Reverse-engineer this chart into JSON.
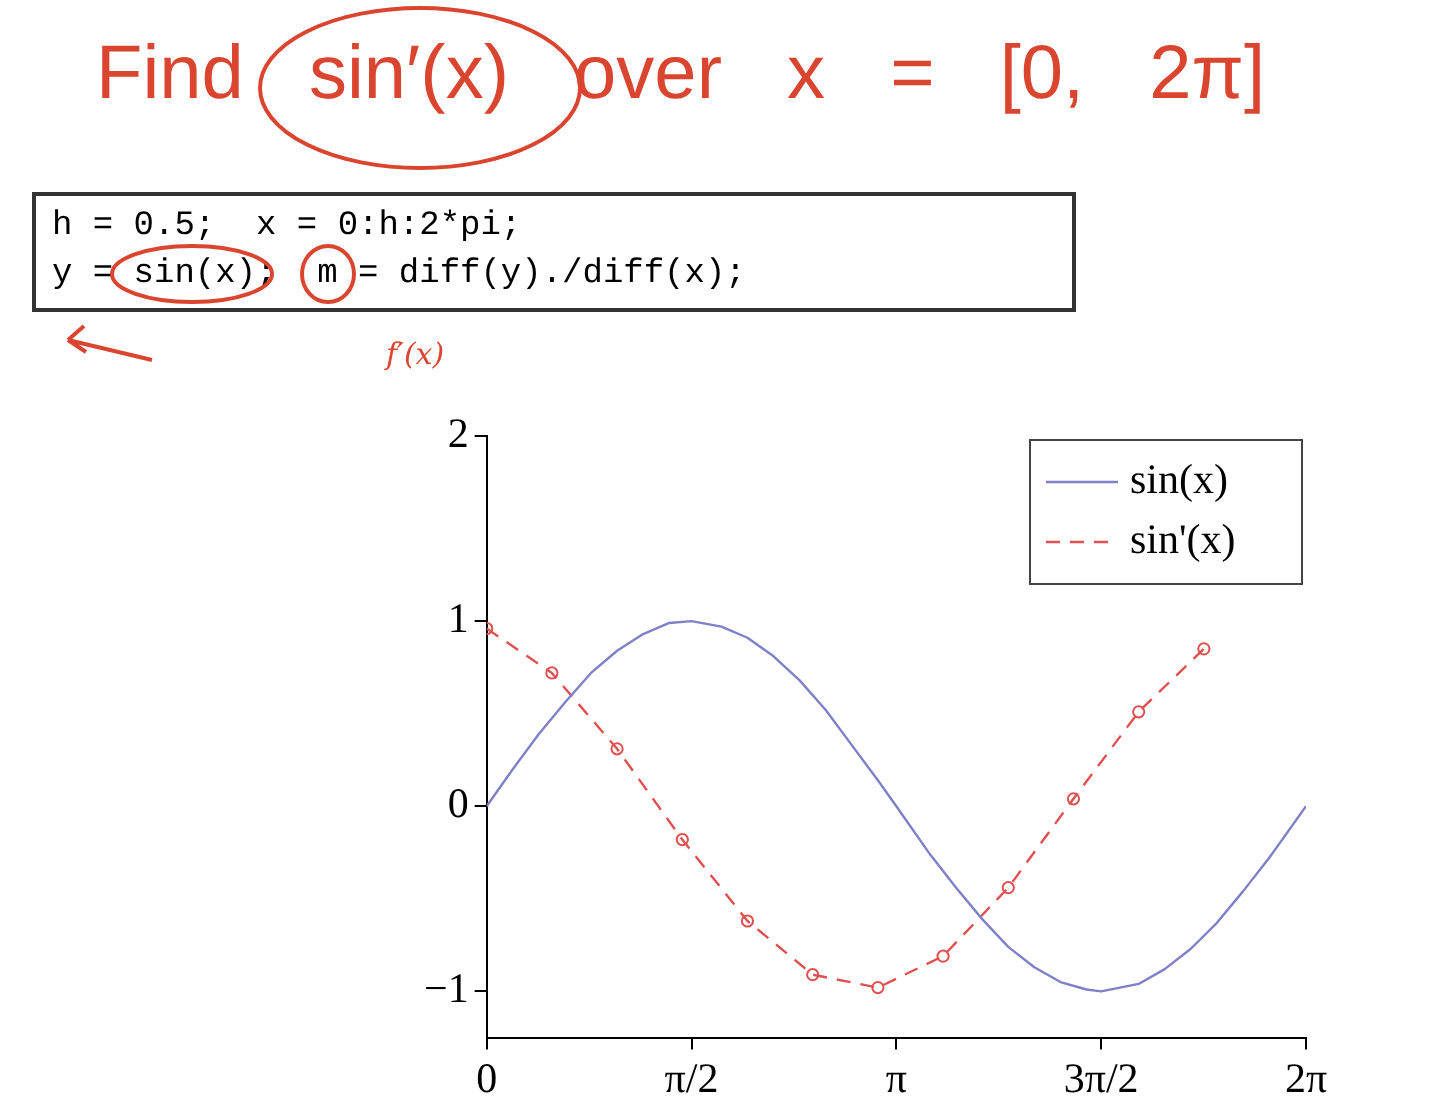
{
  "chart_data": {
    "type": "line",
    "title": "Find sin′(x) over x = [0, 2π]",
    "annotations": [
      "h = 0.5;  x = 0:h:2*pi;",
      "y = sin(x);  m = diff(y)./diff(x);",
      "f′(x)"
    ],
    "xlim": [
      0,
      6.2832
    ],
    "xticks": [
      {
        "value": 0,
        "label": "0"
      },
      {
        "value": 1.5708,
        "label": "π/2"
      },
      {
        "value": 3.1416,
        "label": "π"
      },
      {
        "value": 4.7124,
        "label": "3π/2"
      },
      {
        "value": 6.2832,
        "label": "2π"
      }
    ],
    "ylim": [
      -1.25,
      2
    ],
    "yticks": [
      {
        "value": -1,
        "label": "−1"
      },
      0,
      1,
      2
    ],
    "grid": false,
    "legend": "top right",
    "series": [
      {
        "name": "sin(x)",
        "color": "#8080c8",
        "line_style": "solid",
        "marker": "none",
        "x": [
          0,
          0.2,
          0.4,
          0.6,
          0.8,
          1,
          1.2,
          1.4,
          1.5708,
          1.8,
          2,
          2.2,
          2.4,
          2.6,
          2.8,
          3,
          3.1416,
          3.4,
          3.6,
          3.8,
          4,
          4.2,
          4.4,
          4.6,
          4.7124,
          5,
          5.2,
          5.4,
          5.6,
          5.8,
          6,
          6.2832
        ],
        "values": [
          0,
          0.2,
          0.39,
          0.56,
          0.72,
          0.84,
          0.93,
          0.99,
          1,
          0.97,
          0.91,
          0.81,
          0.68,
          0.52,
          0.33,
          0.14,
          0,
          -0.26,
          -0.44,
          -0.61,
          -0.76,
          -0.87,
          -0.95,
          -0.99,
          -1,
          -0.96,
          -0.88,
          -0.77,
          -0.63,
          -0.46,
          -0.28,
          0
        ]
      },
      {
        "name": "sin'(x)",
        "color": "#e05050",
        "line_style": "dashed",
        "marker": "circle",
        "x": [
          0,
          0.5,
          1,
          1.5,
          2,
          2.5,
          3,
          3.5,
          4,
          4.5,
          5,
          5.5
        ],
        "values": [
          0.96,
          0.72,
          0.31,
          -0.18,
          -0.62,
          -0.91,
          -0.98,
          -0.81,
          -0.44,
          0.04,
          0.51,
          0.85
        ]
      }
    ]
  }
}
